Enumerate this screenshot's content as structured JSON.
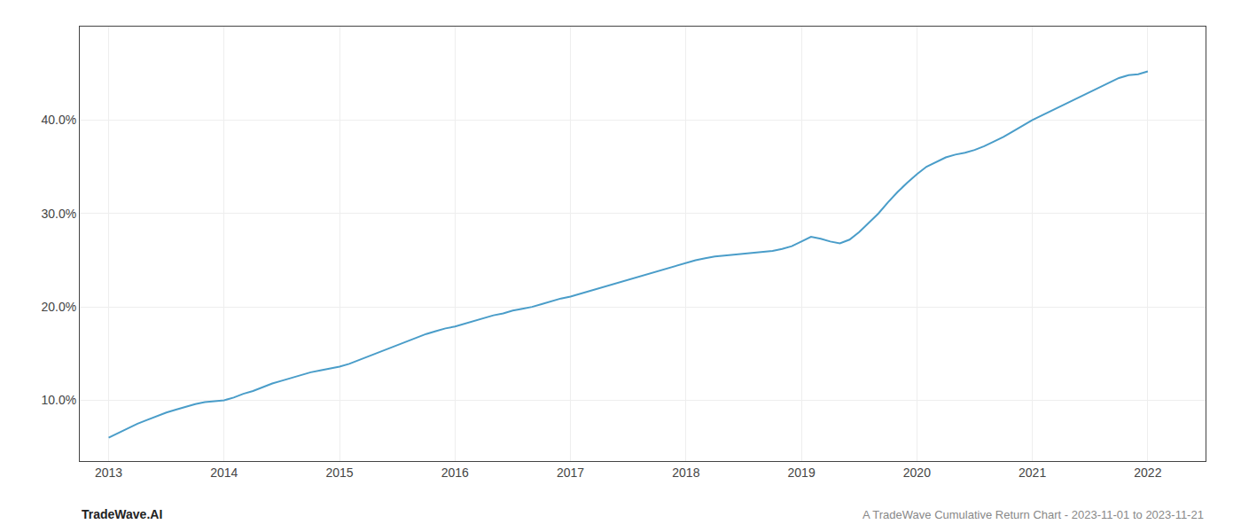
{
  "chart_data": {
    "type": "line",
    "x": [
      2013.0,
      2013.083,
      2013.167,
      2013.25,
      2013.333,
      2013.417,
      2013.5,
      2013.583,
      2013.667,
      2013.75,
      2013.833,
      2013.917,
      2014.0,
      2014.083,
      2014.167,
      2014.25,
      2014.333,
      2014.417,
      2014.5,
      2014.583,
      2014.667,
      2014.75,
      2014.833,
      2014.917,
      2015.0,
      2015.083,
      2015.167,
      2015.25,
      2015.333,
      2015.417,
      2015.5,
      2015.583,
      2015.667,
      2015.75,
      2015.833,
      2015.917,
      2016.0,
      2016.083,
      2016.167,
      2016.25,
      2016.333,
      2016.417,
      2016.5,
      2016.583,
      2016.667,
      2016.75,
      2016.833,
      2016.917,
      2017.0,
      2017.083,
      2017.167,
      2017.25,
      2017.333,
      2017.417,
      2017.5,
      2017.583,
      2017.667,
      2017.75,
      2017.833,
      2017.917,
      2018.0,
      2018.083,
      2018.167,
      2018.25,
      2018.333,
      2018.417,
      2018.5,
      2018.583,
      2018.667,
      2018.75,
      2018.833,
      2018.917,
      2019.0,
      2019.083,
      2019.167,
      2019.25,
      2019.333,
      2019.417,
      2019.5,
      2019.583,
      2019.667,
      2019.75,
      2019.833,
      2019.917,
      2020.0,
      2020.083,
      2020.167,
      2020.25,
      2020.333,
      2020.417,
      2020.5,
      2020.583,
      2020.667,
      2020.75,
      2020.833,
      2020.917,
      2021.0,
      2021.083,
      2021.167,
      2021.25,
      2021.333,
      2021.417,
      2021.5,
      2021.583,
      2021.667,
      2021.75,
      2021.833,
      2021.917,
      2022.0
    ],
    "values": [
      6.0,
      6.5,
      7.0,
      7.5,
      7.9,
      8.3,
      8.7,
      9.0,
      9.3,
      9.6,
      9.8,
      9.9,
      10.0,
      10.3,
      10.7,
      11.0,
      11.4,
      11.8,
      12.1,
      12.4,
      12.7,
      13.0,
      13.2,
      13.4,
      13.6,
      13.9,
      14.3,
      14.7,
      15.1,
      15.5,
      15.9,
      16.3,
      16.7,
      17.1,
      17.4,
      17.7,
      17.9,
      18.2,
      18.5,
      18.8,
      19.1,
      19.3,
      19.6,
      19.8,
      20.0,
      20.3,
      20.6,
      20.9,
      21.1,
      21.4,
      21.7,
      22.0,
      22.3,
      22.6,
      22.9,
      23.2,
      23.5,
      23.8,
      24.1,
      24.4,
      24.7,
      25.0,
      25.2,
      25.4,
      25.5,
      25.6,
      25.7,
      25.8,
      25.9,
      26.0,
      26.2,
      26.5,
      27.0,
      27.5,
      27.3,
      27.0,
      26.8,
      27.2,
      28.0,
      29.0,
      30.0,
      31.2,
      32.3,
      33.3,
      34.2,
      35.0,
      35.5,
      36.0,
      36.3,
      36.5,
      36.8,
      37.2,
      37.7,
      38.2,
      38.8,
      39.4,
      40.0,
      40.5,
      41.0,
      41.5,
      42.0,
      42.5,
      43.0,
      43.5,
      44.0,
      44.5,
      44.8,
      44.9,
      45.2
    ],
    "color": "#4a9dc9",
    "xlim": [
      2012.75,
      2022.5
    ],
    "ylim": [
      3.5,
      50.0
    ],
    "xticks": [
      2013,
      2014,
      2015,
      2016,
      2017,
      2018,
      2019,
      2020,
      2021,
      2022
    ],
    "yticks": [
      {
        "value": 10.0,
        "label": "10.0%"
      },
      {
        "value": 20.0,
        "label": "20.0%"
      },
      {
        "value": 30.0,
        "label": "30.0%"
      },
      {
        "value": 40.0,
        "label": "40.0%"
      }
    ],
    "grid": true,
    "annotations": [
      "TradeWave.AI",
      "A TradeWave Cumulative Return Chart - 2023-11-01 to 2023-11-21"
    ]
  }
}
